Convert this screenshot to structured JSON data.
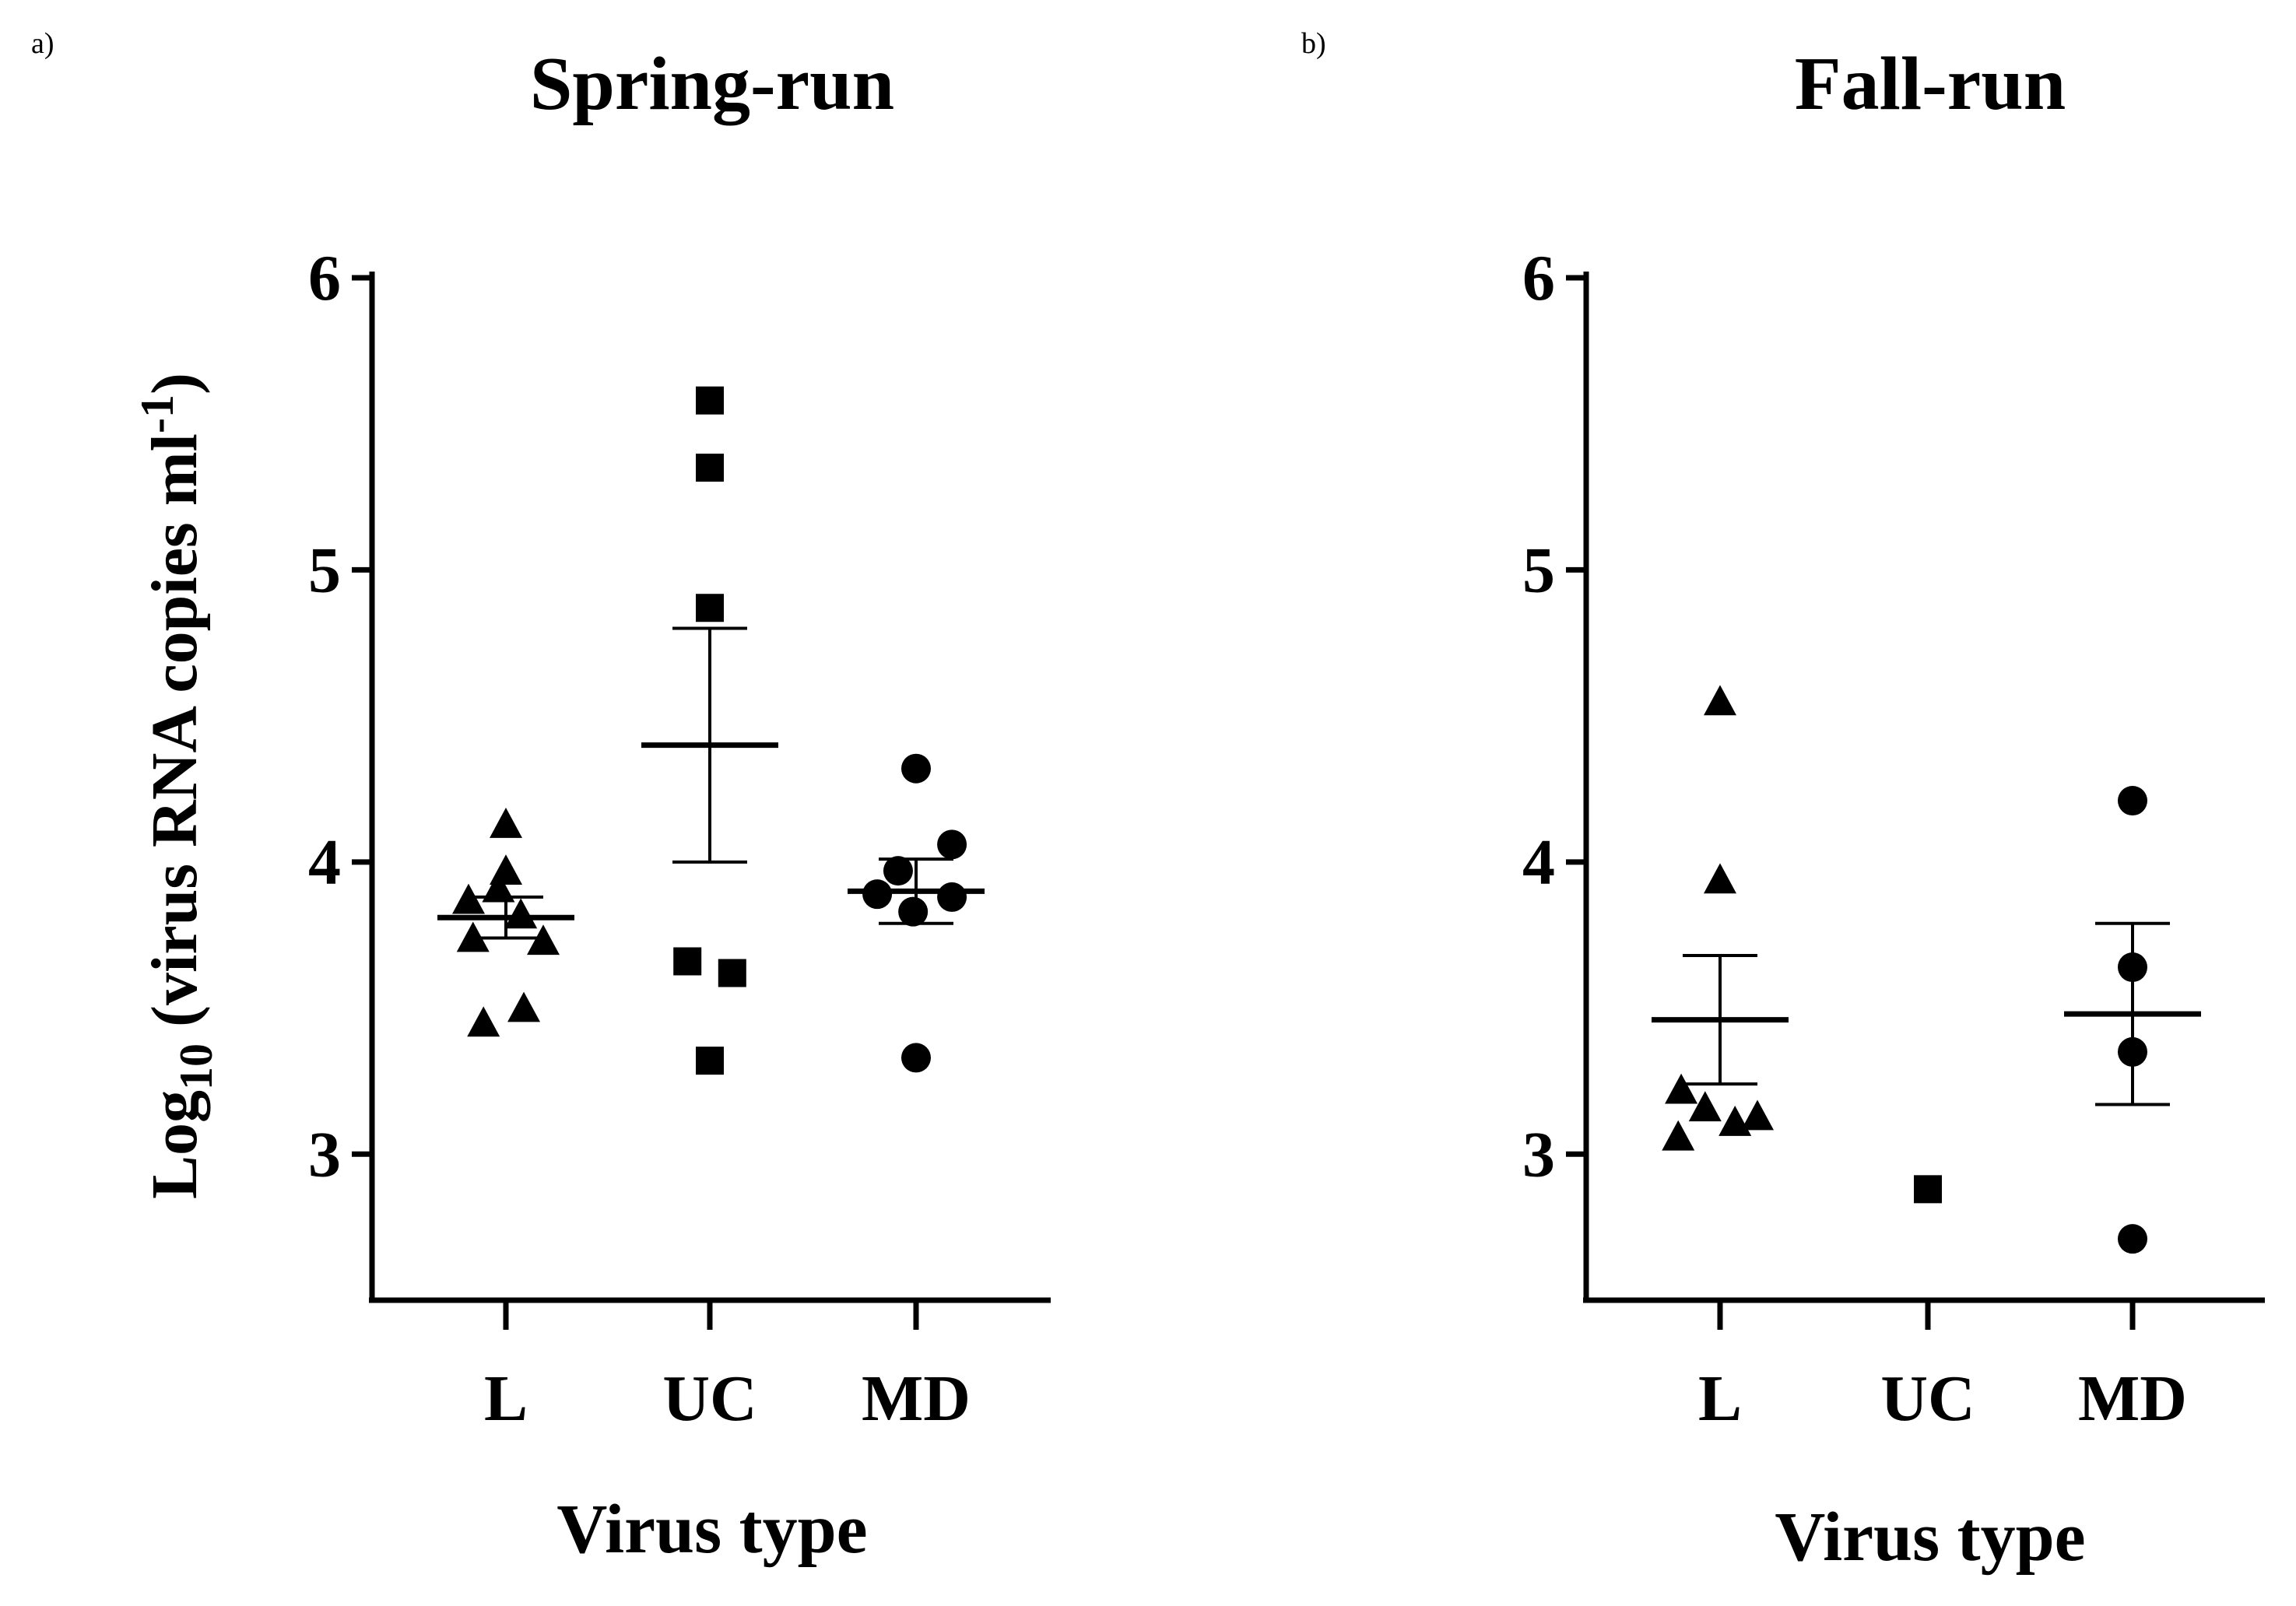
{
  "panel_labels": [
    "a)",
    "b)"
  ],
  "chart_data": [
    {
      "type": "scatter",
      "title": "Spring-run",
      "xlabel": "Virus type",
      "ylabel": {
        "main": "Log",
        "sub": "10",
        "rest": " (virus RNA copies ml",
        "sup": "-1",
        "end": ")"
      },
      "categories": [
        "L",
        "UC",
        "MD"
      ],
      "ylim": [
        2.5,
        6
      ],
      "yticks": [
        "3",
        "4",
        "5",
        "6"
      ],
      "grid": false,
      "groups": [
        {
          "category": "L",
          "marker": "triangle",
          "points": [
            {
              "x": -0.25,
              "y": 3.87
            },
            {
              "x": -0.05,
              "y": 3.91
            },
            {
              "x": 0.1,
              "y": 3.82
            },
            {
              "x": 0.0,
              "y": 4.13
            },
            {
              "x": 0.0,
              "y": 3.97
            },
            {
              "x": -0.22,
              "y": 3.74
            },
            {
              "x": 0.25,
              "y": 3.73
            },
            {
              "x": -0.15,
              "y": 3.45
            },
            {
              "x": 0.12,
              "y": 3.5
            }
          ],
          "mean": 3.81,
          "sem_low": 3.74,
          "sem_high": 3.88
        },
        {
          "category": "UC",
          "marker": "square",
          "points": [
            {
              "x": 0.0,
              "y": 5.58
            },
            {
              "x": 0.0,
              "y": 5.35
            },
            {
              "x": 0.0,
              "y": 4.87
            },
            {
              "x": -0.15,
              "y": 3.66
            },
            {
              "x": 0.15,
              "y": 3.62
            },
            {
              "x": 0.0,
              "y": 3.32
            }
          ],
          "mean": 4.4,
          "sem_low": 4.0,
          "sem_high": 4.8
        },
        {
          "category": "MD",
          "marker": "circle",
          "points": [
            {
              "x": 0.0,
              "y": 4.32
            },
            {
              "x": 0.24,
              "y": 4.06
            },
            {
              "x": -0.12,
              "y": 3.97
            },
            {
              "x": -0.26,
              "y": 3.89
            },
            {
              "x": 0.24,
              "y": 3.88
            },
            {
              "x": -0.02,
              "y": 3.83
            },
            {
              "x": 0.0,
              "y": 3.33
            }
          ],
          "mean": 3.9,
          "sem_low": 3.79,
          "sem_high": 4.01
        }
      ]
    },
    {
      "type": "scatter",
      "title": "Fall-run",
      "xlabel": "Virus type",
      "categories": [
        "L",
        "UC",
        "MD"
      ],
      "ylim": [
        2.5,
        6
      ],
      "yticks": [
        "3",
        "4",
        "5",
        "6"
      ],
      "grid": false,
      "groups": [
        {
          "category": "L",
          "marker": "triangle",
          "points": [
            {
              "x": 0.0,
              "y": 4.55
            },
            {
              "x": 0.0,
              "y": 3.94
            },
            {
              "x": -0.26,
              "y": 3.22
            },
            {
              "x": -0.1,
              "y": 3.16
            },
            {
              "x": 0.1,
              "y": 3.11
            },
            {
              "x": 0.25,
              "y": 3.13
            },
            {
              "x": -0.28,
              "y": 3.06
            }
          ],
          "mean": 3.46,
          "sem_low": 3.24,
          "sem_high": 3.68
        },
        {
          "category": "UC",
          "marker": "square",
          "points": [
            {
              "x": 0.0,
              "y": 2.88
            }
          ],
          "mean": null,
          "sem_low": null,
          "sem_high": null
        },
        {
          "category": "MD",
          "marker": "circle",
          "points": [
            {
              "x": 0.0,
              "y": 4.21
            },
            {
              "x": 0.0,
              "y": 3.64
            },
            {
              "x": 0.0,
              "y": 3.35
            },
            {
              "x": 0.0,
              "y": 2.71
            }
          ],
          "mean": 3.48,
          "sem_low": 3.17,
          "sem_high": 3.79
        }
      ]
    }
  ]
}
